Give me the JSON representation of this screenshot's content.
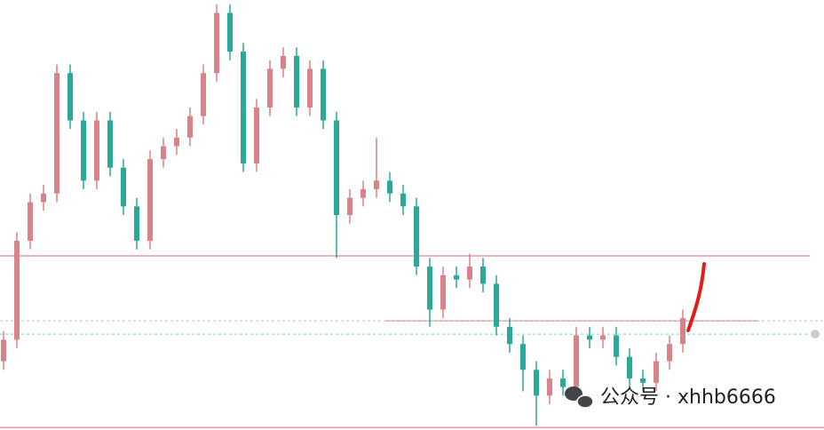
{
  "chart_data": {
    "type": "candlestick",
    "open": [
      16,
      21,
      44,
      53,
      55,
      83,
      72,
      58,
      72,
      61,
      52,
      44,
      63,
      66,
      68,
      73,
      83,
      97,
      88,
      62,
      75,
      84,
      87,
      75,
      84,
      72,
      50,
      54,
      56,
      58,
      55,
      52,
      38,
      28,
      36,
      35,
      38,
      34,
      24,
      20,
      14,
      8,
      12,
      10,
      22,
      21,
      22,
      17,
      12,
      11,
      16,
      20
    ],
    "high": [
      23,
      46,
      55,
      57,
      85,
      85,
      74,
      74,
      74,
      63,
      54,
      65,
      68,
      70,
      75,
      85,
      99,
      99,
      90,
      77,
      86,
      89,
      89,
      86,
      86,
      74,
      56,
      58,
      68,
      60,
      57,
      54,
      40,
      38,
      38,
      41,
      40,
      36,
      26,
      22,
      16,
      14,
      14,
      24,
      24,
      24,
      24,
      19,
      14,
      18,
      22,
      28
    ],
    "low": [
      14,
      19,
      42,
      51,
      53,
      70,
      56,
      56,
      59,
      50,
      42,
      42,
      61,
      64,
      66,
      71,
      81,
      86,
      60,
      60,
      73,
      82,
      73,
      73,
      70,
      40,
      48,
      52,
      54,
      53,
      50,
      36,
      24,
      26,
      33,
      33,
      32,
      22,
      18,
      9,
      1,
      6,
      8,
      8,
      19,
      19,
      15,
      10,
      9,
      9,
      14,
      18
    ],
    "close": [
      21,
      44,
      53,
      55,
      83,
      72,
      58,
      72,
      61,
      52,
      44,
      63,
      66,
      68,
      73,
      83,
      97,
      88,
      62,
      75,
      84,
      87,
      75,
      84,
      72,
      50,
      54,
      56,
      58,
      55,
      52,
      38,
      28,
      36,
      35,
      38,
      34,
      24,
      20,
      14,
      8,
      12,
      10,
      22,
      21,
      22,
      17,
      12,
      11,
      16,
      20,
      26
    ],
    "up_color": "#d9828a",
    "down_color": "#2aa899",
    "ylim": [
      0,
      100
    ],
    "levels": [
      {
        "value": 40.5,
        "color": "#e06670",
        "style": "solid"
      },
      {
        "value": 25.4,
        "color": "#e06670",
        "style": "solid"
      },
      {
        "value": 25.4,
        "color": "#bbbbbb",
        "style": "dotted"
      },
      {
        "value": 22.3,
        "color": "#7fc9b8",
        "style": "dotted"
      },
      {
        "value": 0.6,
        "color": "#e06670",
        "style": "solid"
      }
    ]
  },
  "watermark": "公众号 · xhhb6666"
}
